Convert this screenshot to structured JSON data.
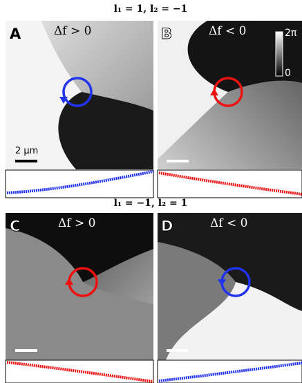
{
  "rows": [
    {
      "title": "l₁ = 1, l₂ = −1",
      "panels": [
        {
          "label": "A",
          "condition": "Δf > 0"
        },
        {
          "label": "B",
          "condition": "Δf < 0"
        }
      ]
    },
    {
      "title": "l₁ = −1, l₂ = 1",
      "panels": [
        {
          "label": "C",
          "condition": "Δf > 0"
        },
        {
          "label": "D",
          "condition": "Δf < 0"
        }
      ]
    }
  ],
  "colorbar": {
    "max": "2π",
    "min": "0"
  },
  "scale_bar": "2 μm"
}
